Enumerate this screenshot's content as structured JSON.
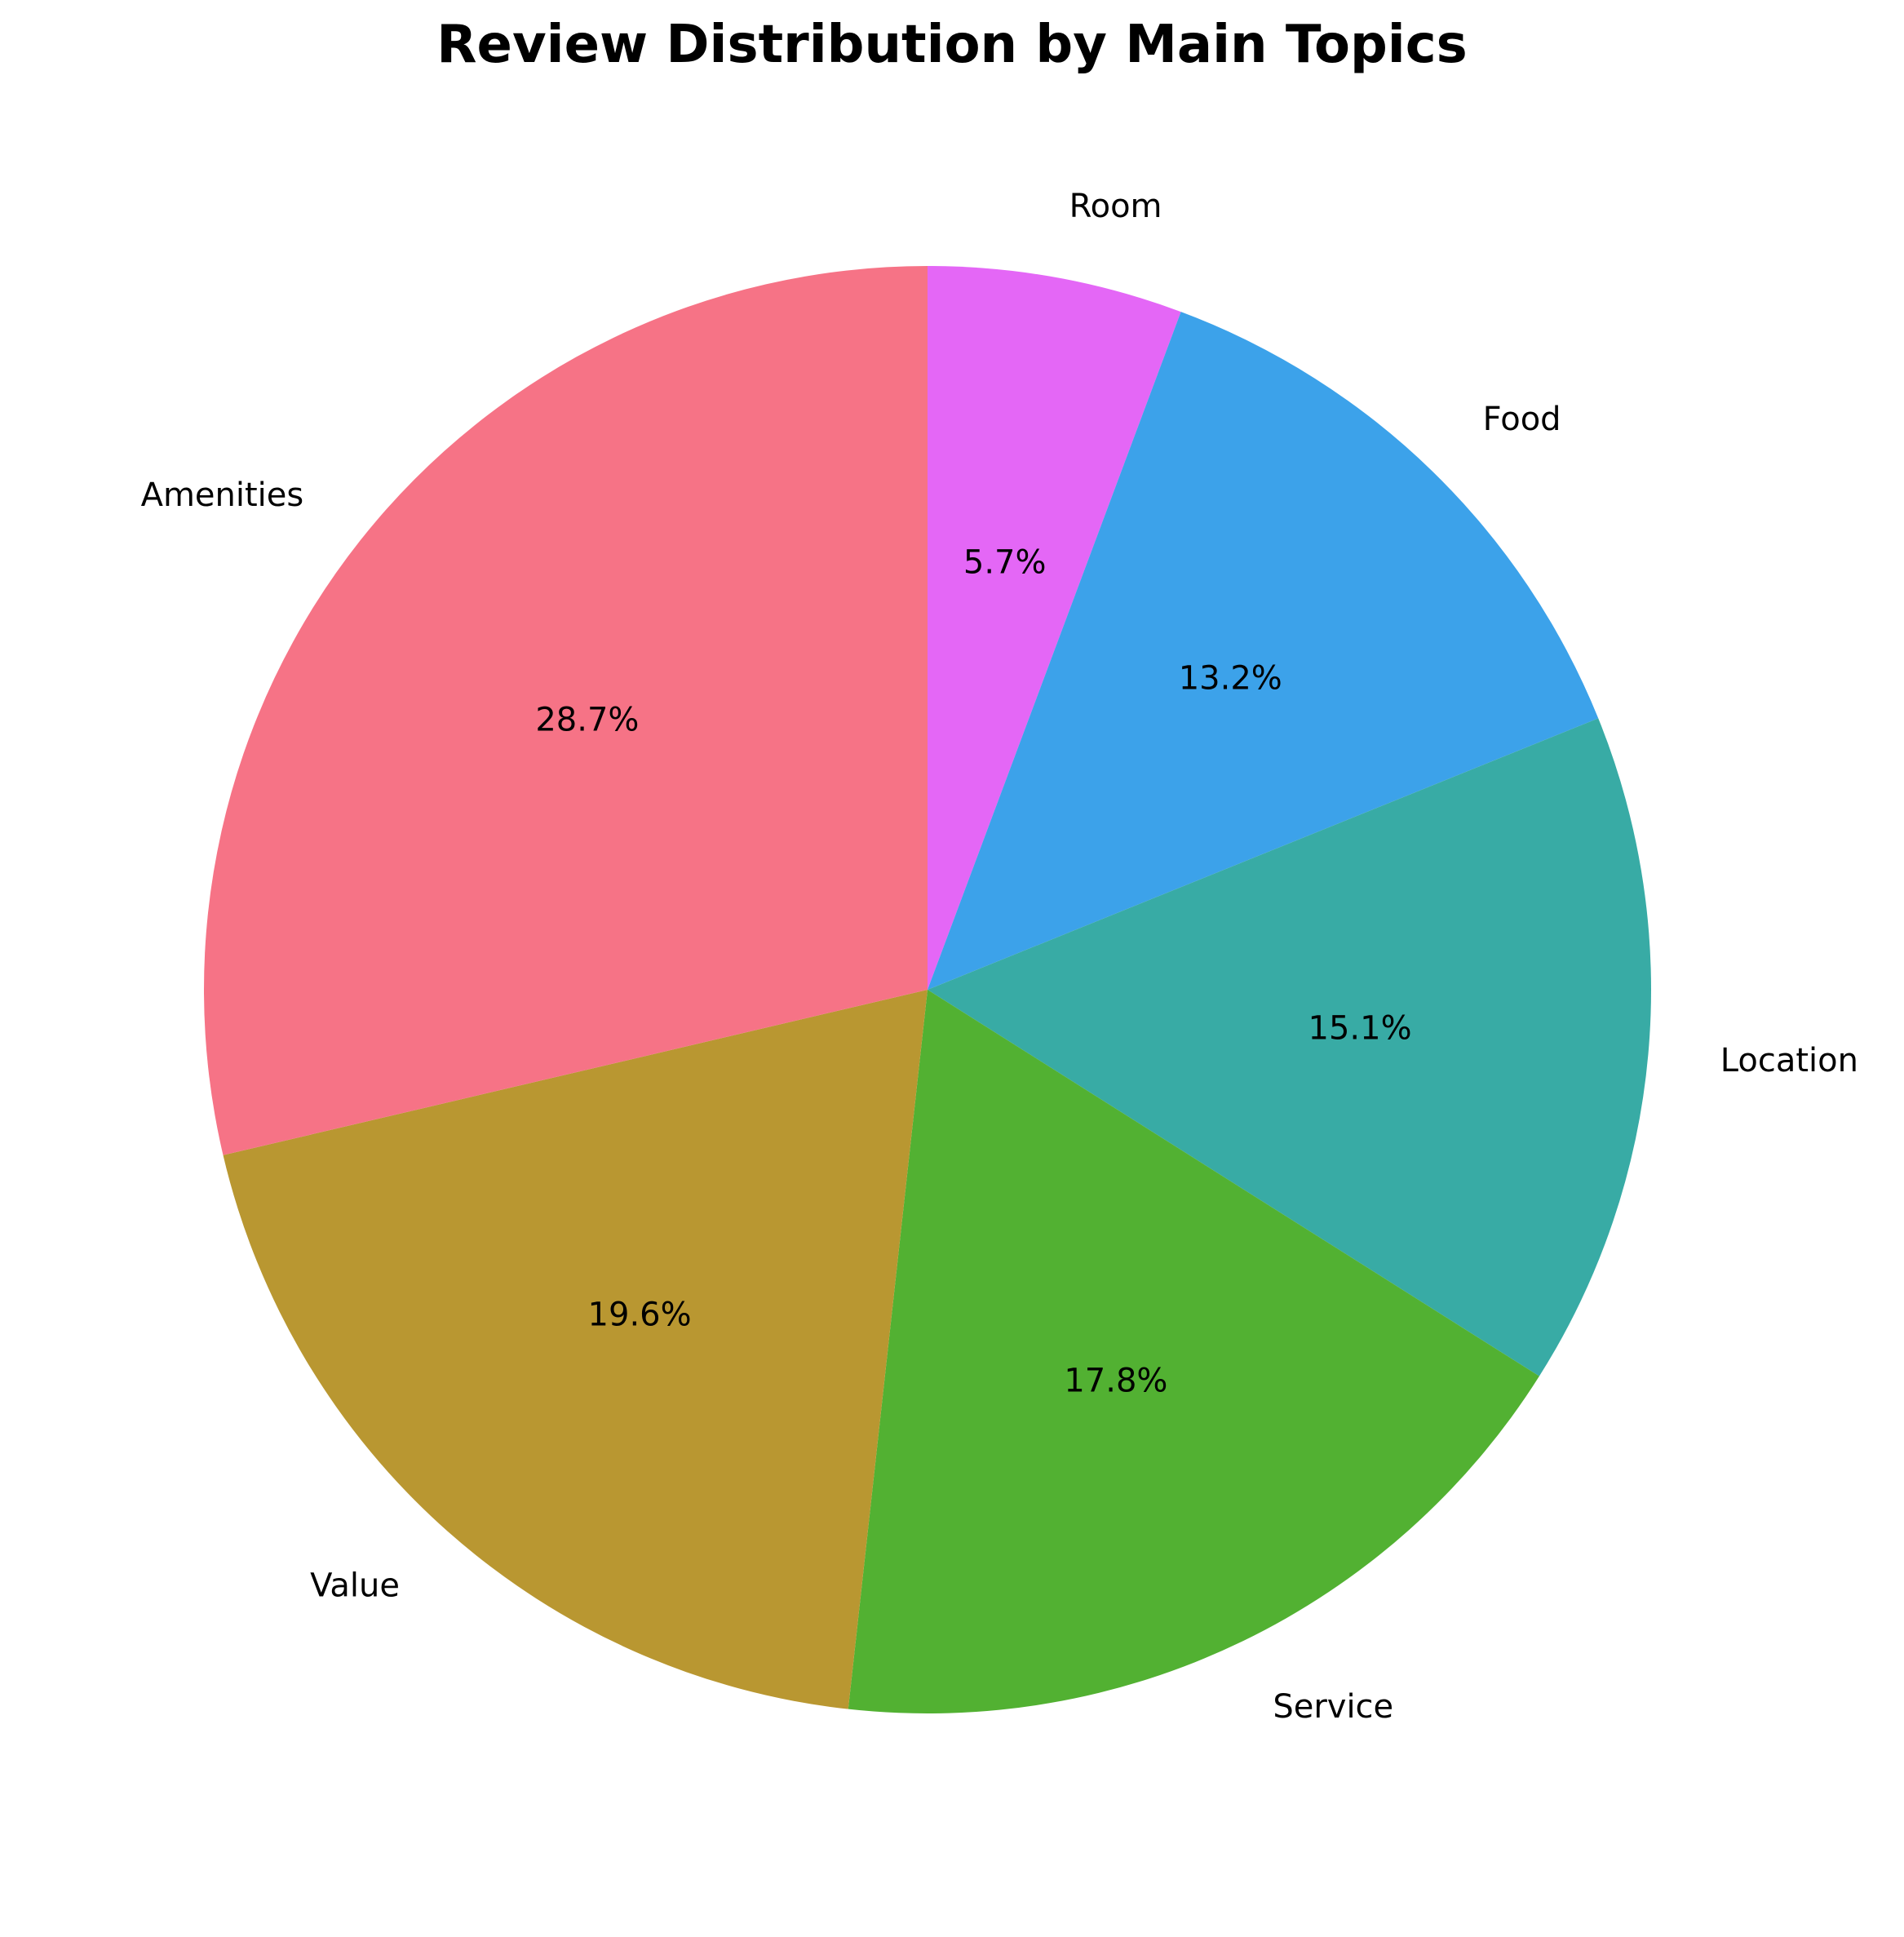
{
  "chart_data": {
    "type": "pie",
    "title": "Review Distribution by Main Topics",
    "start_angle_deg": 90,
    "direction": "clockwise",
    "slices": [
      {
        "label": "Room",
        "value": 5.7,
        "pct_label": "5.7%",
        "color": "#E467F6"
      },
      {
        "label": "Food",
        "value": 13.2,
        "pct_label": "13.2%",
        "color": "#3CA2EA"
      },
      {
        "label": "Location",
        "value": 15.1,
        "pct_label": "15.1%",
        "color": "#38ABA5"
      },
      {
        "label": "Service",
        "value": 17.8,
        "pct_label": "17.8%",
        "color": "#52B132"
      },
      {
        "label": "Value",
        "value": 19.6,
        "pct_label": "19.6%",
        "color": "#B99731"
      },
      {
        "label": "Amenities",
        "value": 28.7,
        "pct_label": "28.7%",
        "color": "#F67386"
      }
    ]
  }
}
